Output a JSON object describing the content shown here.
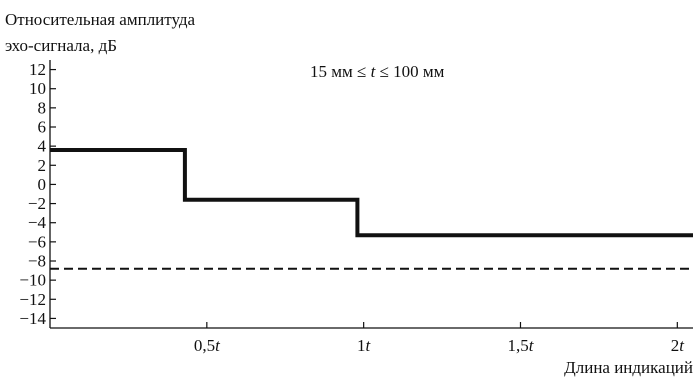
{
  "chart_data": {
    "type": "line",
    "title": "15 мм ≤ t ≤ 100 мм",
    "ylabel_lines": [
      "Относительная амплитуда",
      "эхо-сигнала, дБ"
    ],
    "xlabel": "Длина индикаций",
    "ylim": [
      -15,
      13
    ],
    "xlim": [
      0,
      2.05
    ],
    "yticks": [
      12,
      10,
      8,
      6,
      4,
      2,
      0,
      -2,
      -4,
      -6,
      -8,
      -10,
      -12,
      -14
    ],
    "ytick_labels": [
      "12",
      "10",
      "8",
      "6",
      "4",
      "2",
      "0",
      "−2",
      "−4",
      "−6",
      "−8",
      "−10",
      "−12",
      "−14"
    ],
    "xticks": [
      {
        "value": 0.5,
        "num": "0,5",
        "var": "t"
      },
      {
        "value": 1.0,
        "num": "1",
        "var": "t"
      },
      {
        "value": 1.5,
        "num": "1,5",
        "var": "t"
      },
      {
        "value": 2.0,
        "num": "2",
        "var": "t"
      }
    ],
    "grid": false,
    "series": [
      {
        "style": "solid",
        "step": true,
        "points": [
          [
            0,
            3.6
          ],
          [
            0.43,
            3.6
          ],
          [
            0.43,
            -1.6
          ],
          [
            0.98,
            -1.6
          ],
          [
            0.98,
            -5.3
          ],
          [
            2.05,
            -5.3
          ]
        ]
      },
      {
        "style": "dashed",
        "step": false,
        "points": [
          [
            0,
            -8.8
          ],
          [
            2.05,
            -8.8
          ]
        ]
      }
    ]
  }
}
